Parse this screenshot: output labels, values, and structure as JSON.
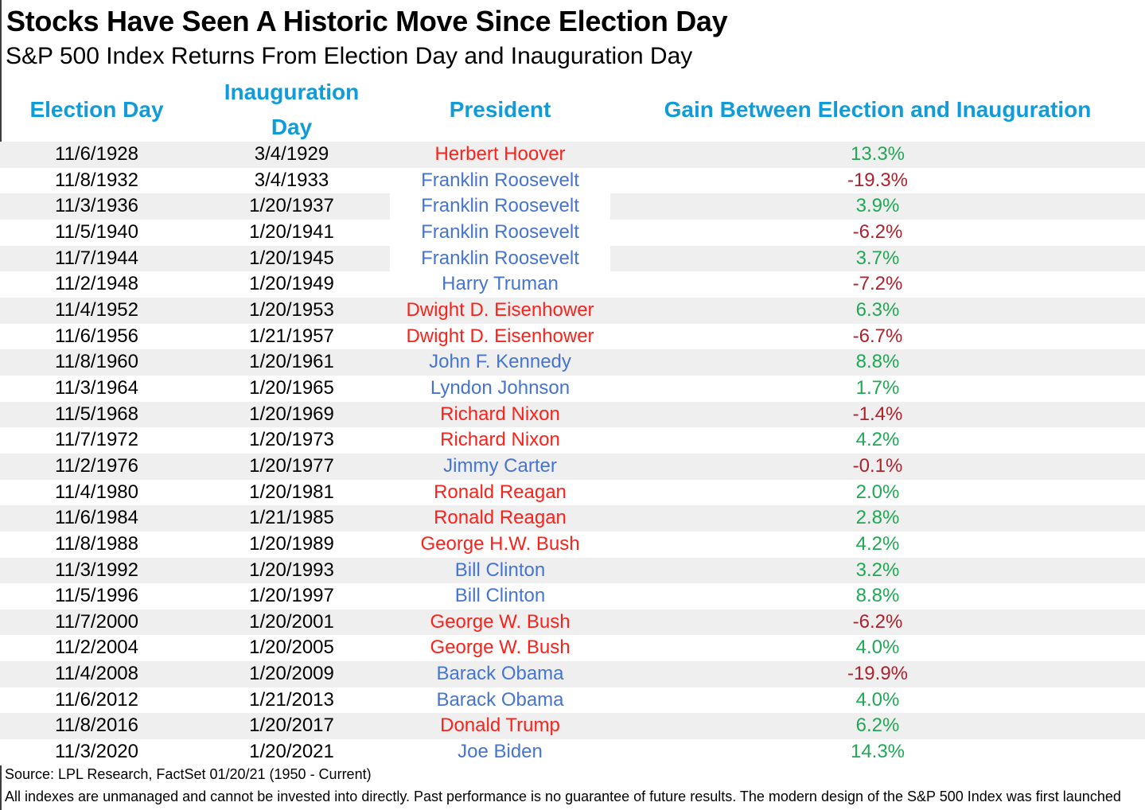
{
  "chart_data": {
    "type": "table",
    "title": "Stocks Have Seen A Historic Move Since Election Day",
    "subtitle": "S&P 500 Index Returns From Election Day and Inauguration Day",
    "columns": [
      "Election Day",
      "Inauguration Day",
      "President",
      "Gain Between Election and Inauguration"
    ],
    "rows": [
      {
        "election_day": "11/6/1928",
        "inauguration_day": "3/4/1929",
        "president": "Herbert Hoover",
        "party": "Republican",
        "gain": "13.3%",
        "gain_value": 13.3
      },
      {
        "election_day": "11/8/1932",
        "inauguration_day": "3/4/1933",
        "president": "Franklin Roosevelt",
        "party": "Democrat",
        "gain": "-19.3%",
        "gain_value": -19.3
      },
      {
        "election_day": "11/3/1936",
        "inauguration_day": "1/20/1937",
        "president": "Franklin Roosevelt",
        "party": "Democrat",
        "gain": "3.9%",
        "gain_value": 3.9,
        "president_cell_unshaded": true
      },
      {
        "election_day": "11/5/1940",
        "inauguration_day": "1/20/1941",
        "president": "Franklin Roosevelt",
        "party": "Democrat",
        "gain": "-6.2%",
        "gain_value": -6.2
      },
      {
        "election_day": "11/7/1944",
        "inauguration_day": "1/20/1945",
        "president": "Franklin Roosevelt",
        "party": "Democrat",
        "gain": "3.7%",
        "gain_value": 3.7,
        "president_cell_unshaded": true
      },
      {
        "election_day": "11/2/1948",
        "inauguration_day": "1/20/1949",
        "president": "Harry Truman",
        "party": "Democrat",
        "gain": "-7.2%",
        "gain_value": -7.2
      },
      {
        "election_day": "11/4/1952",
        "inauguration_day": "1/20/1953",
        "president": "Dwight D. Eisenhower",
        "party": "Republican",
        "gain": "6.3%",
        "gain_value": 6.3
      },
      {
        "election_day": "11/6/1956",
        "inauguration_day": "1/21/1957",
        "president": "Dwight D. Eisenhower",
        "party": "Republican",
        "gain": "-6.7%",
        "gain_value": -6.7
      },
      {
        "election_day": "11/8/1960",
        "inauguration_day": "1/20/1961",
        "president": "John F. Kennedy",
        "party": "Democrat",
        "gain": "8.8%",
        "gain_value": 8.8
      },
      {
        "election_day": "11/3/1964",
        "inauguration_day": "1/20/1965",
        "president": "Lyndon Johnson",
        "party": "Democrat",
        "gain": "1.7%",
        "gain_value": 1.7
      },
      {
        "election_day": "11/5/1968",
        "inauguration_day": "1/20/1969",
        "president": "Richard Nixon",
        "party": "Republican",
        "gain": "-1.4%",
        "gain_value": -1.4
      },
      {
        "election_day": "11/7/1972",
        "inauguration_day": "1/20/1973",
        "president": "Richard Nixon",
        "party": "Republican",
        "gain": "4.2%",
        "gain_value": 4.2
      },
      {
        "election_day": "11/2/1976",
        "inauguration_day": "1/20/1977",
        "president": "Jimmy Carter",
        "party": "Democrat",
        "gain": "-0.1%",
        "gain_value": -0.1
      },
      {
        "election_day": "11/4/1980",
        "inauguration_day": "1/20/1981",
        "president": "Ronald Reagan",
        "party": "Republican",
        "gain": "2.0%",
        "gain_value": 2.0
      },
      {
        "election_day": "11/6/1984",
        "inauguration_day": "1/21/1985",
        "president": "Ronald Reagan",
        "party": "Republican",
        "gain": "2.8%",
        "gain_value": 2.8
      },
      {
        "election_day": "11/8/1988",
        "inauguration_day": "1/20/1989",
        "president": "George H.W. Bush",
        "party": "Republican",
        "gain": "4.2%",
        "gain_value": 4.2
      },
      {
        "election_day": "11/3/1992",
        "inauguration_day": "1/20/1993",
        "president": "Bill Clinton",
        "party": "Democrat",
        "gain": "3.2%",
        "gain_value": 3.2
      },
      {
        "election_day": "11/5/1996",
        "inauguration_day": "1/20/1997",
        "president": "Bill Clinton",
        "party": "Democrat",
        "gain": "8.8%",
        "gain_value": 8.8
      },
      {
        "election_day": "11/7/2000",
        "inauguration_day": "1/20/2001",
        "president": "George W. Bush",
        "party": "Republican",
        "gain": "-6.2%",
        "gain_value": -6.2
      },
      {
        "election_day": "11/2/2004",
        "inauguration_day": "1/20/2005",
        "president": "George W. Bush",
        "party": "Republican",
        "gain": "4.0%",
        "gain_value": 4.0
      },
      {
        "election_day": "11/4/2008",
        "inauguration_day": "1/20/2009",
        "president": "Barack Obama",
        "party": "Democrat",
        "gain": "-19.9%",
        "gain_value": -19.9
      },
      {
        "election_day": "11/6/2012",
        "inauguration_day": "1/21/2013",
        "president": "Barack Obama",
        "party": "Democrat",
        "gain": "4.0%",
        "gain_value": 4.0
      },
      {
        "election_day": "11/8/2016",
        "inauguration_day": "1/20/2017",
        "president": "Donald Trump",
        "party": "Republican",
        "gain": "6.2%",
        "gain_value": 6.2
      },
      {
        "election_day": "11/3/2020",
        "inauguration_day": "1/20/2021",
        "president": "Joe Biden",
        "party": "Democrat",
        "gain": "14.3%",
        "gain_value": 14.3
      }
    ]
  },
  "footer": {
    "source": "Source: LPL Research, FactSet 01/20/21 (1950 - Current)",
    "disclaimer": "All indexes are unmanaged and cannot be invested into directly. Past performance is no guarantee of future results. The modern design of the S&P 500 Index was first launched"
  },
  "colors": {
    "header_blue": "#119BD9",
    "republican_red": "#FB221B",
    "democrat_blue": "#4674D1",
    "gain_positive_green": "#20A854",
    "gain_negative_red": "#AE222D",
    "row_stripe_gray": "#EFEFEF"
  }
}
